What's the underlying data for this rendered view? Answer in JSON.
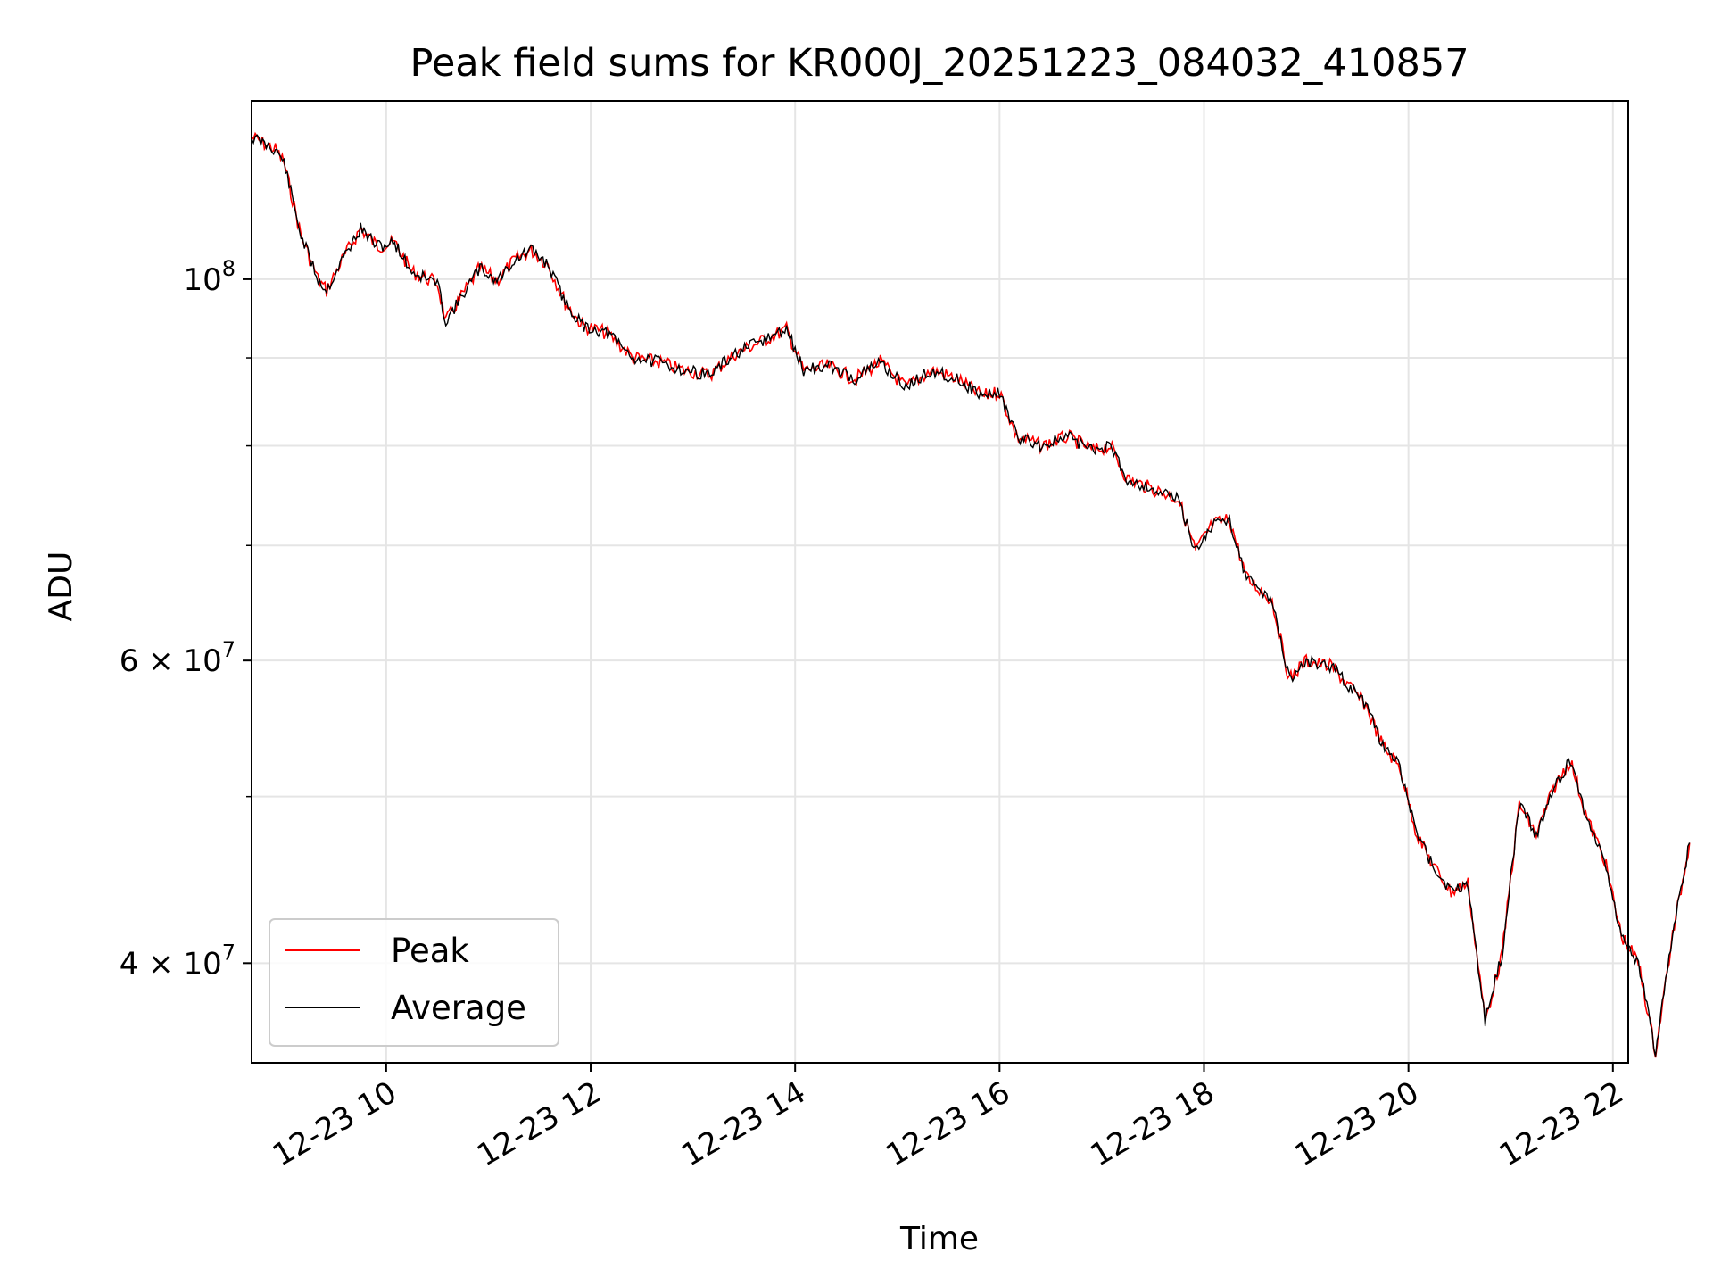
{
  "chart_data": {
    "type": "line",
    "title": "Peak field sums for KR000J_20251223_084032_410857",
    "xlabel": "Time",
    "ylabel": "ADU",
    "yscale": "log",
    "ylim": [
      35000000,
      127000000
    ],
    "xlim": [
      "2025-12-23 08:41",
      "2025-12-23 22:09"
    ],
    "grid": true,
    "legend_position": "lower-left",
    "x_ticks": [
      {
        "value": "2025-12-23 10:00",
        "label": "12-23 10"
      },
      {
        "value": "2025-12-23 12:00",
        "label": "12-23 12"
      },
      {
        "value": "2025-12-23 14:00",
        "label": "12-23 14"
      },
      {
        "value": "2025-12-23 16:00",
        "label": "12-23 16"
      },
      {
        "value": "2025-12-23 18:00",
        "label": "12-23 18"
      },
      {
        "value": "2025-12-23 20:00",
        "label": "12-23 20"
      },
      {
        "value": "2025-12-23 22:00",
        "label": "12-23 22"
      }
    ],
    "y_ticks": [
      {
        "value": 100000000,
        "label": "10",
        "exp": "8",
        "prefix": ""
      },
      {
        "value": 60000000,
        "label": "10",
        "exp": "7",
        "prefix": "6 × "
      },
      {
        "value": 40000000,
        "label": "10",
        "exp": "7",
        "prefix": "4 × "
      }
    ],
    "y_minor_ticks": [
      50000000,
      70000000,
      80000000,
      90000000
    ],
    "series": [
      {
        "name": "Average",
        "color": "#000000",
        "points": [
          [
            "2025-12-23 08:41",
            121000000
          ],
          [
            "2025-12-23 08:55",
            119000000
          ],
          [
            "2025-12-23 09:00",
            117000000
          ],
          [
            "2025-12-23 09:10",
            106000000
          ],
          [
            "2025-12-23 09:15",
            103000000
          ],
          [
            "2025-12-23 09:20",
            100000000
          ],
          [
            "2025-12-23 09:25",
            98500000
          ],
          [
            "2025-12-23 09:35",
            103000000
          ],
          [
            "2025-12-23 09:45",
            107000000
          ],
          [
            "2025-12-23 09:55",
            104500000
          ],
          [
            "2025-12-23 10:05",
            105000000
          ],
          [
            "2025-12-23 10:15",
            101000000
          ],
          [
            "2025-12-23 10:30",
            99500000
          ],
          [
            "2025-12-23 10:35",
            94500000
          ],
          [
            "2025-12-23 10:45",
            98000000
          ],
          [
            "2025-12-23 10:55",
            101500000
          ],
          [
            "2025-12-23 11:05",
            99800000
          ],
          [
            "2025-12-23 11:15",
            102500000
          ],
          [
            "2025-12-23 11:25",
            104000000
          ],
          [
            "2025-12-23 11:35",
            102000000
          ],
          [
            "2025-12-23 11:45",
            97000000
          ],
          [
            "2025-12-23 11:55",
            94000000
          ],
          [
            "2025-12-23 12:10",
            93000000
          ],
          [
            "2025-12-23 12:25",
            90000000
          ],
          [
            "2025-12-23 12:40",
            89500000
          ],
          [
            "2025-12-23 12:55",
            88500000
          ],
          [
            "2025-12-23 13:10",
            88000000
          ],
          [
            "2025-12-23 13:25",
            90500000
          ],
          [
            "2025-12-23 13:40",
            92000000
          ],
          [
            "2025-12-23 13:55",
            93500000
          ],
          [
            "2025-12-23 14:05",
            88500000
          ],
          [
            "2025-12-23 14:20",
            89000000
          ],
          [
            "2025-12-23 14:35",
            87500000
          ],
          [
            "2025-12-23 14:50",
            89500000
          ],
          [
            "2025-12-23 15:05",
            86500000
          ],
          [
            "2025-12-23 15:20",
            88500000
          ],
          [
            "2025-12-23 15:35",
            87500000
          ],
          [
            "2025-12-23 15:50",
            85500000
          ],
          [
            "2025-12-23 16:00",
            86000000
          ],
          [
            "2025-12-23 16:10",
            81000000
          ],
          [
            "2025-12-23 16:25",
            80000000
          ],
          [
            "2025-12-23 16:40",
            81000000
          ],
          [
            "2025-12-23 16:55",
            79500000
          ],
          [
            "2025-12-23 17:05",
            80000000
          ],
          [
            "2025-12-23 17:15",
            76500000
          ],
          [
            "2025-12-23 17:30",
            75500000
          ],
          [
            "2025-12-23 17:45",
            74500000
          ],
          [
            "2025-12-23 17:55",
            69500000
          ],
          [
            "2025-12-23 18:05",
            72000000
          ],
          [
            "2025-12-23 18:15",
            72500000
          ],
          [
            "2025-12-23 18:25",
            67000000
          ],
          [
            "2025-12-23 18:40",
            65000000
          ],
          [
            "2025-12-23 18:50",
            58500000
          ],
          [
            "2025-12-23 19:00",
            60000000
          ],
          [
            "2025-12-23 19:15",
            59500000
          ],
          [
            "2025-12-23 19:25",
            58000000
          ],
          [
            "2025-12-23 19:35",
            56500000
          ],
          [
            "2025-12-23 19:45",
            53500000
          ],
          [
            "2025-12-23 19:55",
            52000000
          ],
          [
            "2025-12-23 20:05",
            47500000
          ],
          [
            "2025-12-23 20:15",
            45500000
          ],
          [
            "2025-12-23 20:25",
            44000000
          ],
          [
            "2025-12-23 20:35",
            44500000
          ],
          [
            "2025-12-23 20:45",
            37000000
          ],
          [
            "2025-12-23 20:55",
            40500000
          ],
          [
            "2025-12-23 21:05",
            49500000
          ],
          [
            "2025-12-23 21:15",
            47500000
          ],
          [
            "2025-12-23 21:25",
            50500000
          ],
          [
            "2025-12-23 21:35",
            52500000
          ],
          [
            "2025-12-23 21:45",
            48500000
          ],
          [
            "2025-12-23 21:55",
            46000000
          ],
          [
            "2025-12-23 22:05",
            41500000
          ],
          [
            "2025-12-23 22:15",
            40000000
          ],
          [
            "2025-12-23 22:25",
            35500000
          ],
          [
            "2025-12-23 22:35",
            41500000
          ],
          [
            "2025-12-23 22:45",
            47000000
          ]
        ]
      },
      {
        "name": "Peak",
        "color": "#ff0000",
        "points": []
      }
    ]
  }
}
